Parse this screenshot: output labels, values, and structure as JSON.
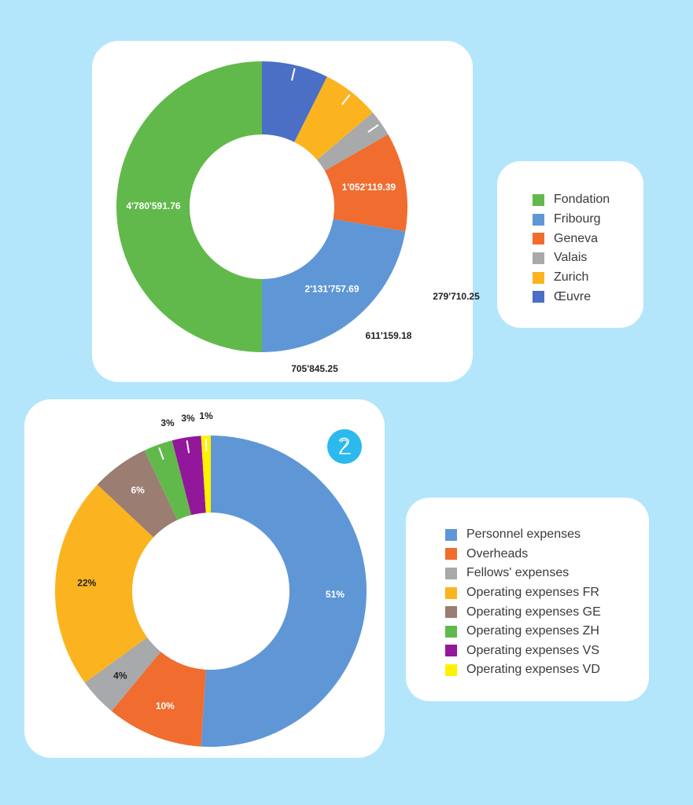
{
  "colors": {
    "background": "#b3e6fb",
    "card": "#ffffff",
    "badge": "#2cb9ee"
  },
  "chart_data": [
    {
      "type": "pie",
      "donut": true,
      "labels": [
        "Fondation",
        "Fribourg",
        "Geneva",
        "Valais",
        "Zurich",
        "Œuvre"
      ],
      "values": [
        4780591.76,
        2131757.69,
        1052119.39,
        279710.25,
        611159.18,
        705845.25
      ],
      "value_labels": [
        "4'780'591.76",
        "2'131'757.69",
        "1'052'119.39",
        "279'710.25",
        "611'159.18",
        "705'845.25"
      ],
      "colors": [
        "#62b94b",
        "#5f97d6",
        "#f16c2f",
        "#a7a9ab",
        "#fbb41f",
        "#4a6fc4"
      ],
      "legend": "right"
    },
    {
      "type": "pie",
      "donut": true,
      "labels": [
        "Personnel expenses",
        "Overheads",
        "Fellows' expenses",
        "Operating expenses FR",
        "Operating expenses GE",
        "Operating expenses ZH",
        "Operating expenses VS",
        "Operating expenses VD"
      ],
      "values": [
        51,
        10,
        4,
        22,
        6,
        3,
        3,
        1
      ],
      "value_labels": [
        "51%",
        "10%",
        "4%",
        "22%",
        "6%",
        "3%",
        "3%",
        "1%"
      ],
      "colors": [
        "#5f97d6",
        "#f16c2f",
        "#a7a9ab",
        "#fbb41f",
        "#9b7d72",
        "#62b94b",
        "#93179a",
        "#fff200"
      ],
      "legend": "right",
      "badge_icon": "number-two-icon"
    }
  ]
}
